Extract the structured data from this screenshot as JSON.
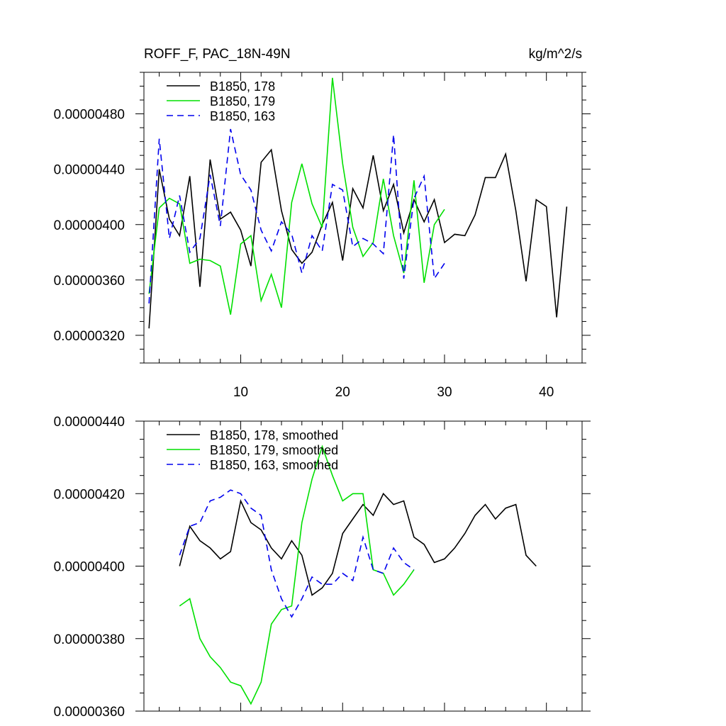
{
  "header": {
    "title_left": "ROFF_F, PAC_18N-49N",
    "title_right": "kg/m^2/s"
  },
  "chart_data": [
    {
      "type": "line",
      "panel": "top",
      "xlim": [
        0.5,
        43.5
      ],
      "ylim": [
        3e-06,
        5.1e-06
      ],
      "xticks": [
        10,
        20,
        30,
        40
      ],
      "xtick_labels": [
        "10",
        "20",
        "30",
        "40"
      ],
      "yticks": [
        3.2e-06,
        3.6e-06,
        4e-06,
        4.4e-06,
        4.8e-06
      ],
      "ytick_labels": [
        "0.00000320",
        "0.00000360",
        "0.00000400",
        "0.00000440",
        "0.00000480"
      ],
      "legend_position": "top-left",
      "series": [
        {
          "name": "B1850, 178",
          "color": "#000000",
          "dash": "solid",
          "x": [
            1,
            2,
            3,
            4,
            5,
            6,
            7,
            8,
            9,
            10,
            11,
            12,
            13,
            14,
            15,
            16,
            17,
            18,
            19,
            20,
            21,
            22,
            23,
            24,
            25,
            26,
            27,
            28,
            29,
            30,
            31,
            32,
            33,
            34,
            35,
            36,
            37,
            38,
            39,
            40,
            41,
            42
          ],
          "values": [
            3.25e-06,
            4.4e-06,
            4.04e-06,
            3.92e-06,
            4.35e-06,
            3.55e-06,
            4.47e-06,
            4.04e-06,
            4.09e-06,
            3.96e-06,
            3.7e-06,
            4.45e-06,
            4.54e-06,
            4.1e-06,
            3.82e-06,
            3.72e-06,
            3.8e-06,
            4e-06,
            4.16e-06,
            3.74e-06,
            4.26e-06,
            4.12e-06,
            4.5e-06,
            4.1e-06,
            4.29e-06,
            3.94e-06,
            4.18e-06,
            4.02e-06,
            4.18e-06,
            3.87e-06,
            3.93e-06,
            3.92e-06,
            4.07e-06,
            4.34e-06,
            4.34e-06,
            4.51e-06,
            4.1e-06,
            3.59e-06,
            4.18e-06,
            4.13e-06,
            3.33e-06,
            4.13e-06
          ]
        },
        {
          "name": "B1850, 179",
          "color": "#00e000",
          "dash": "solid",
          "x": [
            1,
            2,
            3,
            4,
            5,
            6,
            7,
            8,
            9,
            10,
            11,
            12,
            13,
            14,
            15,
            16,
            17,
            18,
            19,
            20,
            21,
            22,
            23,
            24,
            25,
            26,
            27,
            28,
            29,
            30
          ],
          "values": [
            3.5e-06,
            4.12e-06,
            4.19e-06,
            4.15e-06,
            3.72e-06,
            3.75e-06,
            3.74e-06,
            3.7e-06,
            3.35e-06,
            3.86e-06,
            3.92e-06,
            3.45e-06,
            3.64e-06,
            3.4e-06,
            4.16e-06,
            4.44e-06,
            4.15e-06,
            3.98e-06,
            5.06e-06,
            4.44e-06,
            3.98e-06,
            3.77e-06,
            3.87e-06,
            4.33e-06,
            3.92e-06,
            3.65e-06,
            4.32e-06,
            3.58e-06,
            4e-06,
            4.11e-06
          ]
        },
        {
          "name": "B1850, 163",
          "color": "#0000ee",
          "dash": "dashed",
          "x": [
            1,
            2,
            3,
            4,
            5,
            6,
            7,
            8,
            9,
            10,
            11,
            12,
            13,
            14,
            15,
            16,
            17,
            18,
            19,
            20,
            21,
            22,
            23,
            24,
            25,
            26,
            27,
            28,
            29,
            30
          ],
          "values": [
            3.43e-06,
            4.62e-06,
            3.9e-06,
            4.21e-06,
            3.8e-06,
            3.9e-06,
            4.36e-06,
            3.99e-06,
            4.69e-06,
            4.36e-06,
            4.25e-06,
            3.96e-06,
            3.81e-06,
            4.02e-06,
            3.93e-06,
            3.65e-06,
            3.92e-06,
            3.81e-06,
            4.29e-06,
            4.25e-06,
            3.84e-06,
            3.9e-06,
            3.86e-06,
            3.79e-06,
            4.65e-06,
            3.61e-06,
            4.19e-06,
            4.35e-06,
            3.61e-06,
            3.72e-06
          ]
        }
      ]
    },
    {
      "type": "line",
      "panel": "bottom",
      "xlim": [
        0.5,
        43.5
      ],
      "ylim": [
        3.6e-06,
        4.4e-06
      ],
      "xticks": [
        10,
        20,
        30,
        40
      ],
      "yticks": [
        3.6e-06,
        3.8e-06,
        4e-06,
        4.2e-06,
        4.4e-06
      ],
      "ytick_labels": [
        "0.00000360",
        "0.00000380",
        "0.00000400",
        "0.00000420",
        "0.00000440"
      ],
      "legend_position": "top-left",
      "series": [
        {
          "name": "B1850, 178, smoothed",
          "color": "#000000",
          "dash": "solid",
          "x": [
            4,
            5,
            6,
            7,
            8,
            9,
            10,
            11,
            12,
            13,
            14,
            15,
            16,
            17,
            18,
            19,
            20,
            21,
            22,
            23,
            24,
            25,
            26,
            27,
            28,
            29,
            30,
            31,
            32,
            33,
            34,
            35,
            36,
            37,
            38,
            39
          ],
          "values": [
            4e-06,
            4.11e-06,
            4.07e-06,
            4.05e-06,
            4.02e-06,
            4.04e-06,
            4.18e-06,
            4.12e-06,
            4.1e-06,
            4.05e-06,
            4.02e-06,
            4.07e-06,
            4.03e-06,
            3.92e-06,
            3.94e-06,
            3.98e-06,
            4.09e-06,
            4.13e-06,
            4.17e-06,
            4.14e-06,
            4.2e-06,
            4.17e-06,
            4.18e-06,
            4.08e-06,
            4.06e-06,
            4.01e-06,
            4.02e-06,
            4.05e-06,
            4.09e-06,
            4.14e-06,
            4.17e-06,
            4.13e-06,
            4.16e-06,
            4.17e-06,
            4.03e-06,
            4e-06
          ]
        },
        {
          "name": "B1850, 179, smoothed",
          "color": "#00e000",
          "dash": "solid",
          "x": [
            4,
            5,
            6,
            7,
            8,
            9,
            10,
            11,
            12,
            13,
            14,
            15,
            16,
            17,
            18,
            19,
            20,
            21,
            22,
            23,
            24,
            25,
            26,
            27
          ],
          "values": [
            3.89e-06,
            3.91e-06,
            3.8e-06,
            3.75e-06,
            3.72e-06,
            3.68e-06,
            3.67e-06,
            3.62e-06,
            3.68e-06,
            3.84e-06,
            3.88e-06,
            3.89e-06,
            4.12e-06,
            4.24e-06,
            4.33e-06,
            4.25e-06,
            4.18e-06,
            4.2e-06,
            4.2e-06,
            3.99e-06,
            3.98e-06,
            3.92e-06,
            3.95e-06,
            3.99e-06
          ]
        },
        {
          "name": "B1850, 163, smoothed",
          "color": "#0000ee",
          "dash": "dashed",
          "x": [
            4,
            5,
            6,
            7,
            8,
            9,
            10,
            11,
            12,
            13,
            14,
            15,
            16,
            17,
            18,
            19,
            20,
            21,
            22,
            23,
            24,
            25,
            26,
            27
          ],
          "values": [
            4.03e-06,
            4.11e-06,
            4.12e-06,
            4.18e-06,
            4.19e-06,
            4.21e-06,
            4.2e-06,
            4.16e-06,
            4.14e-06,
            3.99e-06,
            3.91e-06,
            3.86e-06,
            3.91e-06,
            3.97e-06,
            3.95e-06,
            3.95e-06,
            3.98e-06,
            3.96e-06,
            4.08e-06,
            3.99e-06,
            3.98e-06,
            4.05e-06,
            4.01e-06,
            3.99e-06
          ]
        }
      ]
    }
  ]
}
